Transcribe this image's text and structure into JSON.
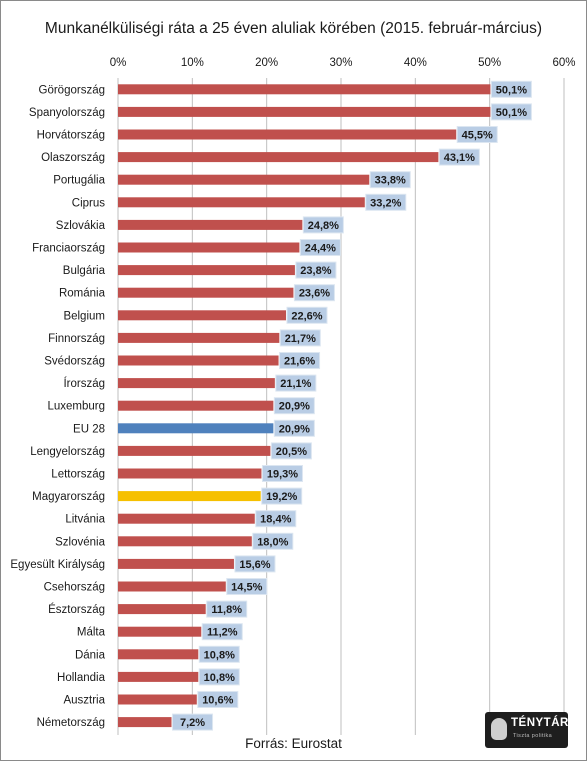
{
  "chart_data": {
    "type": "bar",
    "orientation": "horizontal",
    "title": "Munkanélküliségi ráta a 25 éven aluliak körében (2015. február-március)",
    "source": "Forrás: Eurostat",
    "xlim": [
      0,
      60
    ],
    "x_ticks": [
      "0%",
      "10%",
      "20%",
      "30%",
      "40%",
      "50%",
      "60%"
    ],
    "grid": true,
    "colors": {
      "default": "#c0504d",
      "eu": "#4f81bd",
      "highlight": "#f6c000",
      "label_bg": "#b9cde5"
    },
    "categories": [
      "Görögország",
      "Spanyolország",
      "Horvátország",
      "Olaszország",
      "Portugália",
      "Ciprus",
      "Szlovákia",
      "Franciaország",
      "Bulgária",
      "Románia",
      "Belgium",
      "Finnország",
      "Svédország",
      "Írország",
      "Luxemburg",
      "EU 28",
      "Lengyelország",
      "Lettország",
      "Magyarország",
      "Litvánia",
      "Szlovénia",
      "Egyesült Királyság",
      "Csehország",
      "Észtország",
      "Málta",
      "Dánia",
      "Hollandia",
      "Ausztria",
      "Németország"
    ],
    "values": [
      50.1,
      50.1,
      45.5,
      43.1,
      33.8,
      33.2,
      24.8,
      24.4,
      23.8,
      23.6,
      22.6,
      21.7,
      21.6,
      21.1,
      20.9,
      20.9,
      20.5,
      19.3,
      19.2,
      18.4,
      18.0,
      15.6,
      14.5,
      11.8,
      11.2,
      10.8,
      10.8,
      10.6,
      7.2
    ],
    "value_labels": [
      "50,1%",
      "50,1%",
      "45,5%",
      "43,1%",
      "33,8%",
      "33,2%",
      "24,8%",
      "24,4%",
      "23,8%",
      "23,6%",
      "22,6%",
      "21,7%",
      "21,6%",
      "21,1%",
      "20,9%",
      "20,9%",
      "20,5%",
      "19,3%",
      "19,2%",
      "18,4%",
      "18,0%",
      "15,6%",
      "14,5%",
      "11,8%",
      "11,2%",
      "10,8%",
      "10,8%",
      "10,6%",
      "7,2%"
    ],
    "bar_colors": [
      "default",
      "default",
      "default",
      "default",
      "default",
      "default",
      "default",
      "default",
      "default",
      "default",
      "default",
      "default",
      "default",
      "default",
      "default",
      "eu",
      "default",
      "default",
      "highlight",
      "default",
      "default",
      "default",
      "default",
      "default",
      "default",
      "default",
      "default",
      "default",
      "default"
    ]
  },
  "logo": {
    "name": "TÉNYTÁR",
    "tagline": "Tiszta politika"
  }
}
